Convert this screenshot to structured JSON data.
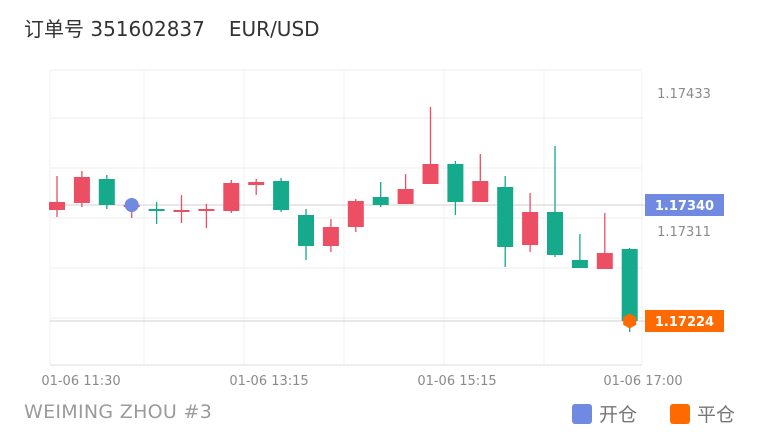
{
  "header": {
    "order_label": "订单号 351602837",
    "symbol": "EUR/USD"
  },
  "footer": {
    "account": "WEIMING ZHOU #3"
  },
  "legend": [
    {
      "label": "开仓",
      "color": "#6f8ae0"
    },
    {
      "label": "平仓",
      "color": "#ff6a00"
    }
  ],
  "colors": {
    "up": "#ec4e64",
    "down": "#14aa8b"
  },
  "chart_data": {
    "type": "candlestick",
    "xlabels": [
      "01-06 11:30",
      "01-06 13:15",
      "01-06 15:15",
      "01-06 17:00"
    ],
    "ytick_labels": [
      "1.17433",
      "1.17311"
    ],
    "ylim": [
      1.1718,
      1.17475
    ],
    "price_tags": [
      {
        "label": "1.17340",
        "value": 1.1734,
        "color": "#6f8ae0"
      },
      {
        "label": "1.17224",
        "value": 1.17224,
        "color": "#ff6a00"
      }
    ],
    "entry": {
      "index": 3,
      "price": 1.1734,
      "color": "#6f8ae0"
    },
    "exit": {
      "index": 23,
      "price": 1.17224,
      "color": "#ff6a00"
    },
    "candles": [
      {
        "o": 1.17335,
        "h": 1.17369,
        "l": 1.17328,
        "c": 1.17343
      },
      {
        "o": 1.17342,
        "h": 1.17374,
        "l": 1.17338,
        "c": 1.17368
      },
      {
        "o": 1.17366,
        "h": 1.1737,
        "l": 1.17336,
        "c": 1.1734
      },
      {
        "o": 1.1734,
        "h": 1.17344,
        "l": 1.17327,
        "c": 1.1734
      },
      {
        "o": 1.17336,
        "h": 1.17343,
        "l": 1.17321,
        "c": 1.17335
      },
      {
        "o": 1.17335,
        "h": 1.1735,
        "l": 1.17322,
        "c": 1.17335
      },
      {
        "o": 1.17336,
        "h": 1.17341,
        "l": 1.17317,
        "c": 1.17336
      },
      {
        "o": 1.17334,
        "h": 1.17365,
        "l": 1.17332,
        "c": 1.17362
      },
      {
        "o": 1.1736,
        "h": 1.17366,
        "l": 1.1735,
        "c": 1.17363
      },
      {
        "o": 1.17364,
        "h": 1.17367,
        "l": 1.17333,
        "c": 1.17335
      },
      {
        "o": 1.1733,
        "h": 1.17336,
        "l": 1.17285,
        "c": 1.17299
      },
      {
        "o": 1.17299,
        "h": 1.17326,
        "l": 1.17293,
        "c": 1.17318
      },
      {
        "o": 1.17318,
        "h": 1.17346,
        "l": 1.17313,
        "c": 1.17344
      },
      {
        "o": 1.17348,
        "h": 1.17363,
        "l": 1.17338,
        "c": 1.1734
      },
      {
        "o": 1.17341,
        "h": 1.17371,
        "l": 1.17341,
        "c": 1.17356
      },
      {
        "o": 1.17361,
        "h": 1.17438,
        "l": 1.17361,
        "c": 1.17381
      },
      {
        "o": 1.17381,
        "h": 1.17384,
        "l": 1.1733,
        "c": 1.17343
      },
      {
        "o": 1.17343,
        "h": 1.17391,
        "l": 1.17343,
        "c": 1.17364
      },
      {
        "o": 1.17358,
        "h": 1.17369,
        "l": 1.17278,
        "c": 1.17298
      },
      {
        "o": 1.173,
        "h": 1.17352,
        "l": 1.17293,
        "c": 1.17333
      },
      {
        "o": 1.17333,
        "h": 1.17399,
        "l": 1.17288,
        "c": 1.1729
      },
      {
        "o": 1.17285,
        "h": 1.17311,
        "l": 1.17278,
        "c": 1.17277
      },
      {
        "o": 1.17276,
        "h": 1.17332,
        "l": 1.17276,
        "c": 1.17292
      },
      {
        "o": 1.17296,
        "h": 1.17297,
        "l": 1.17213,
        "c": 1.17224
      }
    ]
  }
}
